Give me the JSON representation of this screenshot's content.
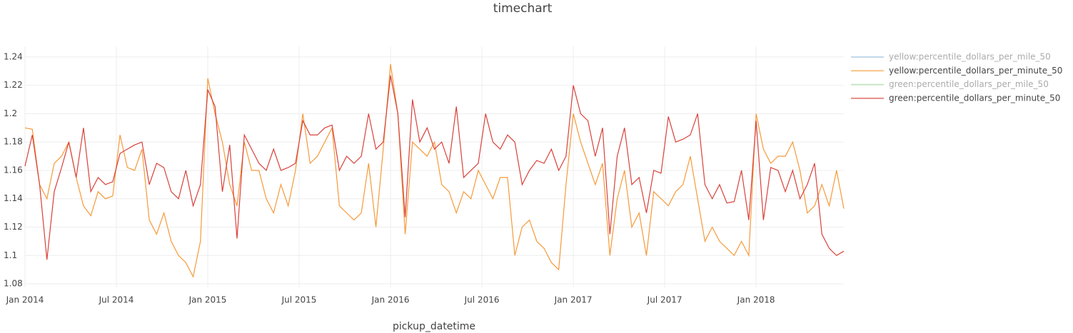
{
  "chart_data": {
    "type": "line",
    "title": "timechart",
    "x_label": "pickup_datetime",
    "x": [
      2014,
      2014.04,
      2014.08,
      2014.12,
      2014.16,
      2014.2,
      2014.24,
      2014.28,
      2014.32,
      2014.36,
      2014.4,
      2014.44,
      2014.48,
      2014.52,
      2014.56,
      2014.6,
      2014.64,
      2014.68,
      2014.72,
      2014.76,
      2014.8,
      2014.84,
      2014.88,
      2014.92,
      2014.96,
      2015,
      2015.04,
      2015.08,
      2015.12,
      2015.16,
      2015.2,
      2015.24,
      2015.28,
      2015.32,
      2015.36,
      2015.4,
      2015.44,
      2015.48,
      2015.52,
      2015.56,
      2015.6,
      2015.64,
      2015.68,
      2015.72,
      2015.76,
      2015.8,
      2015.84,
      2015.88,
      2015.92,
      2015.96,
      2016,
      2016.04,
      2016.08,
      2016.12,
      2016.16,
      2016.2,
      2016.24,
      2016.28,
      2016.32,
      2016.36,
      2016.4,
      2016.44,
      2016.48,
      2016.52,
      2016.56,
      2016.6,
      2016.64,
      2016.68,
      2016.72,
      2016.76,
      2016.8,
      2016.84,
      2016.88,
      2016.92,
      2016.96,
      2017,
      2017.04,
      2017.08,
      2017.12,
      2017.16,
      2017.2,
      2017.24,
      2017.28,
      2017.32,
      2017.36,
      2017.4,
      2017.44,
      2017.48,
      2017.52,
      2017.56,
      2017.6,
      2017.64,
      2017.68,
      2017.72,
      2017.76,
      2017.8,
      2017.84,
      2017.88,
      2017.92,
      2017.96,
      2018,
      2018.04,
      2018.08,
      2018.12,
      2018.16,
      2018.2,
      2018.24,
      2018.28,
      2018.32,
      2018.36,
      2018.4,
      2018.44,
      2018.48
    ],
    "series": [
      {
        "name": "yellow:percentile_dollars_per_mile_50",
        "color": "#1f77b4",
        "visible": "legendonly"
      },
      {
        "name": "yellow:percentile_dollars_per_minute_50",
        "color": "#f59a3a",
        "values": [
          1.19,
          1.189,
          1.15,
          1.14,
          1.165,
          1.17,
          1.18,
          1.155,
          1.135,
          1.128,
          1.145,
          1.14,
          1.142,
          1.185,
          1.162,
          1.16,
          1.175,
          1.125,
          1.115,
          1.13,
          1.11,
          1.1,
          1.095,
          1.085,
          1.11,
          1.225,
          1.2,
          1.18,
          1.15,
          1.135,
          1.18,
          1.16,
          1.16,
          1.14,
          1.13,
          1.15,
          1.135,
          1.16,
          1.2,
          1.165,
          1.17,
          1.18,
          1.19,
          1.135,
          1.13,
          1.125,
          1.13,
          1.165,
          1.12,
          1.175,
          1.235,
          1.2,
          1.115,
          1.18,
          1.175,
          1.17,
          1.18,
          1.15,
          1.145,
          1.13,
          1.145,
          1.14,
          1.16,
          1.15,
          1.14,
          1.155,
          1.155,
          1.1,
          1.12,
          1.125,
          1.11,
          1.105,
          1.095,
          1.09,
          1.15,
          1.2,
          1.18,
          1.165,
          1.15,
          1.165,
          1.1,
          1.14,
          1.16,
          1.12,
          1.13,
          1.1,
          1.145,
          1.14,
          1.135,
          1.145,
          1.15,
          1.17,
          1.14,
          1.11,
          1.12,
          1.11,
          1.105,
          1.1,
          1.11,
          1.1,
          1.2,
          1.175,
          1.165,
          1.17,
          1.17,
          1.18,
          1.16,
          1.13,
          1.135,
          1.15,
          1.135,
          1.16,
          1.133
        ]
      },
      {
        "name": "green:percentile_dollars_per_mile_50",
        "color": "#2ca02c",
        "visible": "legendonly"
      },
      {
        "name": "green:percentile_dollars_per_minute_50",
        "color": "#d9413a",
        "values": [
          1.163,
          1.185,
          1.15,
          1.097,
          1.145,
          1.162,
          1.18,
          1.155,
          1.19,
          1.145,
          1.155,
          1.15,
          1.152,
          1.172,
          1.175,
          1.178,
          1.18,
          1.15,
          1.165,
          1.162,
          1.145,
          1.14,
          1.16,
          1.135,
          1.15,
          1.217,
          1.205,
          1.145,
          1.178,
          1.112,
          1.185,
          1.175,
          1.165,
          1.16,
          1.175,
          1.16,
          1.162,
          1.165,
          1.195,
          1.185,
          1.185,
          1.19,
          1.192,
          1.16,
          1.17,
          1.165,
          1.17,
          1.2,
          1.175,
          1.18,
          1.227,
          1.2,
          1.127,
          1.21,
          1.18,
          1.19,
          1.175,
          1.18,
          1.165,
          1.205,
          1.155,
          1.16,
          1.165,
          1.2,
          1.18,
          1.175,
          1.185,
          1.18,
          1.15,
          1.16,
          1.167,
          1.165,
          1.175,
          1.16,
          1.17,
          1.22,
          1.2,
          1.195,
          1.17,
          1.19,
          1.115,
          1.17,
          1.19,
          1.15,
          1.155,
          1.13,
          1.16,
          1.158,
          1.198,
          1.18,
          1.182,
          1.185,
          1.2,
          1.15,
          1.14,
          1.15,
          1.137,
          1.138,
          1.16,
          1.125,
          1.195,
          1.125,
          1.162,
          1.16,
          1.145,
          1.16,
          1.14,
          1.15,
          1.165,
          1.115,
          1.105,
          1.1,
          1.103
        ]
      }
    ],
    "xlim": [
      2014,
      2018.48
    ],
    "xticks": [
      {
        "value": 2014,
        "label": "Jan 2014"
      },
      {
        "value": 2014.5,
        "label": "Jul 2014"
      },
      {
        "value": 2015,
        "label": "Jan 2015"
      },
      {
        "value": 2015.5,
        "label": "Jul 2015"
      },
      {
        "value": 2016,
        "label": "Jan 2016"
      },
      {
        "value": 2016.5,
        "label": "Jul 2016"
      },
      {
        "value": 2017,
        "label": "Jan 2017"
      },
      {
        "value": 2017.5,
        "label": "Jul 2017"
      },
      {
        "value": 2018,
        "label": "Jan 2018"
      }
    ],
    "ylim": [
      1.0775,
      1.2475
    ],
    "yticks": [
      1.08,
      1.1,
      1.12,
      1.14,
      1.16,
      1.18,
      1.2,
      1.22,
      1.24
    ],
    "grid": true,
    "legend": "right"
  }
}
